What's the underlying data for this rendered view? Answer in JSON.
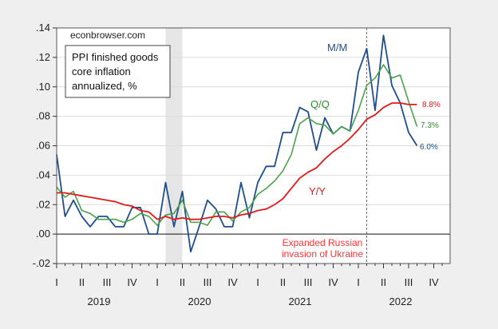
{
  "chart_data": {
    "type": "line",
    "watermark": "econbrowser.com",
    "title_box": [
      "PPI finished goods",
      "core inflation",
      "annualized, %"
    ],
    "x_start": "2019-01",
    "x_frequency": "monthly",
    "x_range": [
      "2019-01",
      "2022-11"
    ],
    "x_tick_labels": [
      "I",
      "II",
      "III",
      "IV",
      "I",
      "II",
      "III",
      "IV",
      "I",
      "II",
      "III",
      "IV",
      "I",
      "II",
      "III",
      "IV"
    ],
    "x_year_labels": [
      "2019",
      "2020",
      "2021",
      "2022"
    ],
    "ylim": [
      -0.02,
      0.14
    ],
    "y_ticks": [
      -0.02,
      0.0,
      0.02,
      0.04,
      0.06,
      0.08,
      0.1,
      0.12,
      0.14
    ],
    "y_tick_labels": [
      "-.02",
      ".00",
      ".02",
      ".04",
      ".06",
      ".08",
      ".10",
      ".12",
      ".14"
    ],
    "grid": true,
    "zero_line": true,
    "shaded_period": [
      "2020-02",
      "2020-04"
    ],
    "event_line": {
      "date": "2022-02",
      "label": [
        "Expanded Russian",
        "invasion of Ukraine"
      ],
      "color": "#ff3333"
    },
    "series": [
      {
        "name": "M/M",
        "color": "#1f4e8c",
        "end_label": "6.0%",
        "values": [
          0.054,
          0.012,
          0.023,
          0.012,
          0.005,
          0.012,
          0.012,
          0.005,
          0.005,
          0.018,
          0.018,
          0.0,
          0.0,
          0.035,
          0.005,
          0.029,
          -0.012,
          0.005,
          0.023,
          0.017,
          0.005,
          0.005,
          0.035,
          0.011,
          0.035,
          0.046,
          0.046,
          0.069,
          0.069,
          0.086,
          0.083,
          0.057,
          0.079,
          0.068,
          0.073,
          0.07,
          0.11,
          0.126,
          0.084,
          0.135,
          0.101,
          0.089,
          0.069,
          0.06
        ]
      },
      {
        "name": "Q/Q",
        "color": "#4ca24c",
        "end_label": "7.3%",
        "values": [
          0.032,
          0.025,
          0.029,
          0.016,
          0.014,
          0.01,
          0.01,
          0.01,
          0.008,
          0.01,
          0.014,
          0.012,
          0.006,
          0.013,
          0.014,
          0.023,
          0.008,
          0.008,
          0.006,
          0.015,
          0.015,
          0.009,
          0.015,
          0.018,
          0.027,
          0.031,
          0.036,
          0.043,
          0.054,
          0.075,
          0.079,
          0.075,
          0.074,
          0.068,
          0.073,
          0.07,
          0.084,
          0.101,
          0.106,
          0.115,
          0.106,
          0.108,
          0.09,
          0.073
        ]
      },
      {
        "name": "Y/Y",
        "color": "#e01a1a",
        "end_label": "8.8%",
        "values": [
          0.028,
          0.028,
          0.027,
          0.026,
          0.025,
          0.024,
          0.023,
          0.022,
          0.02,
          0.019,
          0.016,
          0.015,
          0.01,
          0.012,
          0.01,
          0.011,
          0.01,
          0.01,
          0.011,
          0.012,
          0.012,
          0.011,
          0.013,
          0.014,
          0.016,
          0.017,
          0.02,
          0.024,
          0.031,
          0.038,
          0.042,
          0.045,
          0.051,
          0.056,
          0.06,
          0.065,
          0.071,
          0.078,
          0.081,
          0.086,
          0.089,
          0.089,
          0.088,
          0.088
        ]
      }
    ]
  }
}
